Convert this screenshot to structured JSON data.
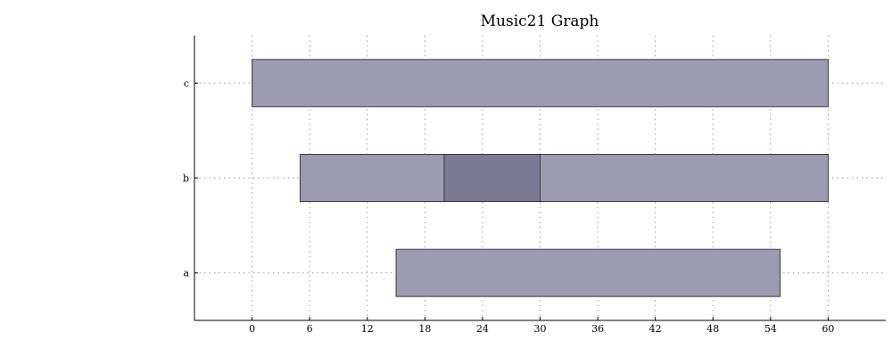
{
  "chart_data": {
    "type": "bar",
    "orientation": "horizontal-range",
    "title": "Music21 Graph",
    "xlabel": "",
    "ylabel": "",
    "xlim": [
      -6,
      66
    ],
    "xticks": [
      0,
      6,
      12,
      18,
      24,
      30,
      36,
      42,
      48,
      54,
      60
    ],
    "categories": [
      "a",
      "b",
      "c"
    ],
    "grid": true,
    "colors": {
      "bar": "#9d9bb0",
      "overlap": "#7b7993",
      "edge": "#3a3a44"
    },
    "series": [
      {
        "category": "a",
        "ranges": [
          {
            "start": 15,
            "end": 55,
            "highlight": false
          }
        ]
      },
      {
        "category": "b",
        "ranges": [
          {
            "start": 5,
            "end": 60,
            "highlight": false
          },
          {
            "start": 20,
            "end": 30,
            "highlight": true
          }
        ]
      },
      {
        "category": "c",
        "ranges": [
          {
            "start": 0,
            "end": 60,
            "highlight": false
          }
        ]
      }
    ]
  }
}
